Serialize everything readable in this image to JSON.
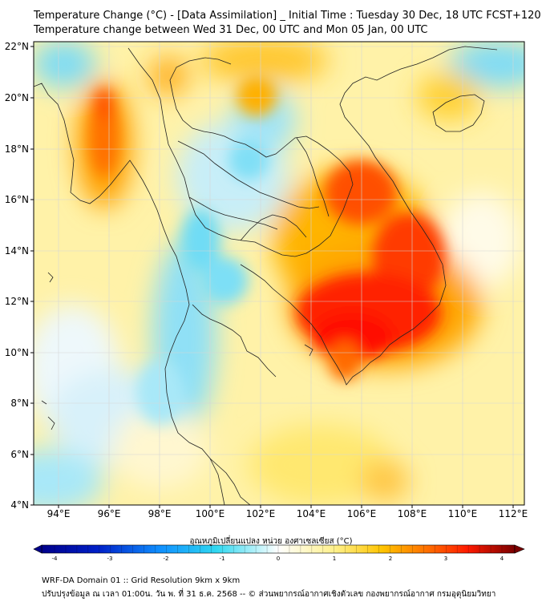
{
  "title": {
    "line1": "Temperature Change (°C) - [Data Assimilation] _ Initial Time : Tuesday 30 Dec, 18 UTC FCST+120",
    "line2": "Temperature change between Wed 31 Dec, 00 UTC and Mon 05 Jan, 00 UTC"
  },
  "axes": {
    "lon_labels": [
      "94°E",
      "96°E",
      "98°E",
      "100°E",
      "102°E",
      "104°E",
      "106°E",
      "108°E",
      "110°E",
      "112°E"
    ],
    "lat_labels": [
      "22°N",
      "20°N",
      "18°N",
      "16°N",
      "14°N",
      "12°N",
      "10°N",
      "8°N",
      "6°N",
      "4°N"
    ],
    "lon_range": [
      93.0,
      112.4
    ],
    "lat_range": [
      4.0,
      22.2
    ]
  },
  "colorbar": {
    "label": "อุณหภูมิเปลี่ยนแปลง หน่วย องศาเซลเซียส (°C)",
    "ticks": [
      "-4",
      "-3",
      "-2",
      "-1",
      "0",
      "1",
      "2",
      "3",
      "4"
    ],
    "min": -4,
    "max": 4
  },
  "footer": {
    "line1": "WRF-DA Domain 01 :: Grid Resolution 9km x 9km",
    "line2": "ปรับปรุงข้อมูล ณ เวลา 01:00น. วัน พ. ที่ 31 ธ.ค. 2568 -- © ส่วนพยากรณ์อากาศเชิงตัวเลข กองพยากรณ์อากาศ กรมอุตุนิยมวิทยา"
  },
  "colors": {
    "cold_deep": "#00008b",
    "cold": "#20d0f0",
    "neutral": "#ffffff",
    "warm": "#ffe34d",
    "hot": "#ff2000",
    "hot_deep": "#7a0000"
  }
}
